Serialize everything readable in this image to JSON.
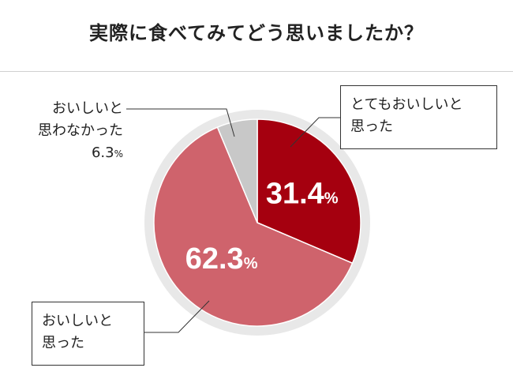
{
  "chart_data": {
    "type": "pie",
    "title": "実際に食べてみてどう思いましたか？",
    "slices": [
      {
        "label": "とてもおいしいと思った",
        "lines": [
          "とてもおいしいと",
          "思った"
        ],
        "value": 31.4,
        "display": "31.4",
        "color": "#a5000f"
      },
      {
        "label": "おいしいと思った",
        "lines": [
          "おいしいと",
          "思った"
        ],
        "value": 62.3,
        "display": "62.3",
        "color": "#cf636c"
      },
      {
        "label": "おいしいと思わなかった",
        "lines": [
          "おいしいと",
          "思わなかった"
        ],
        "value": 6.3,
        "display": "6.3",
        "color": "#c8c8c8"
      }
    ],
    "unit": "%",
    "start": "12 o'clock",
    "direction": "clockwise"
  }
}
